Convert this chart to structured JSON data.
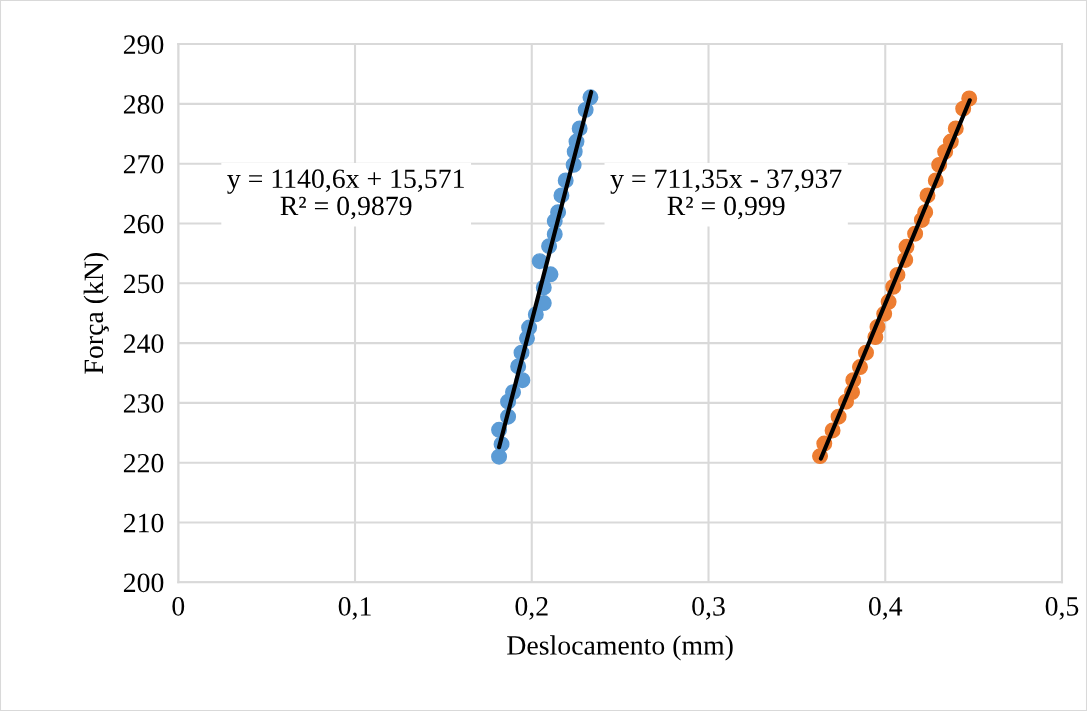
{
  "chart_data": {
    "type": "scatter",
    "xlabel": "Deslocamento (mm)",
    "ylabel": "Força (kN)",
    "xlim": [
      0,
      0.5
    ],
    "xticks": [
      {
        "value": 0,
        "label": "0"
      },
      {
        "value": 0.1,
        "label": "0,1"
      },
      {
        "value": 0.2,
        "label": "0,2"
      },
      {
        "value": 0.3,
        "label": "0,3"
      },
      {
        "value": 0.4,
        "label": "0,4"
      },
      {
        "value": 0.5,
        "label": "0,5"
      }
    ],
    "ylim": [
      200,
      290
    ],
    "yticks": [
      200,
      210,
      220,
      230,
      240,
      250,
      260,
      270,
      280,
      290
    ],
    "grid": true,
    "marker": "circle",
    "annotations": [
      "y = 1140,6x + 15,571\nR² = 0,9879",
      "y = 711,35x - 37,937\nR² = 0,999"
    ],
    "series": [
      {
        "color": "#5b9bd5",
        "x": [
          0.1815,
          0.1829,
          0.1815,
          0.1866,
          0.1866,
          0.1894,
          0.1947,
          0.1923,
          0.1942,
          0.1973,
          0.1985,
          0.2023,
          0.2068,
          0.2068,
          0.2106,
          0.2045,
          0.2098,
          0.213,
          0.213,
          0.2149,
          0.2168,
          0.2192,
          0.2237,
          0.2243,
          0.2253,
          0.2271,
          0.2305,
          0.2332
        ],
        "values": [
          221.0,
          223.1,
          225.5,
          227.7,
          230.2,
          231.8,
          233.8,
          236.1,
          238.4,
          240.8,
          242.6,
          244.8,
          246.7,
          249.3,
          251.5,
          253.7,
          256.2,
          258.2,
          260.4,
          261.9,
          264.7,
          267.2,
          269.8,
          272.0,
          273.7,
          275.9,
          279.0,
          281.1
        ]
      },
      {
        "color": "#ed7d31",
        "x": [
          0.3631,
          0.3655,
          0.3702,
          0.3736,
          0.3778,
          0.3812,
          0.3819,
          0.3857,
          0.3891,
          0.3944,
          0.3956,
          0.3994,
          0.4019,
          0.4045,
          0.4069,
          0.4113,
          0.412,
          0.4169,
          0.4207,
          0.4226,
          0.4239,
          0.4286,
          0.4305,
          0.4339,
          0.4371,
          0.4399,
          0.4441,
          0.4475
        ],
        "values": [
          221.1,
          223.2,
          225.4,
          227.7,
          230.2,
          231.8,
          233.8,
          236.0,
          238.4,
          241.0,
          242.7,
          244.9,
          246.9,
          249.4,
          251.4,
          253.9,
          256.1,
          258.3,
          260.6,
          261.9,
          264.7,
          267.2,
          269.8,
          272.0,
          273.7,
          275.9,
          279.2,
          280.9
        ]
      },
      {
        "type": "line",
        "color": "#000000",
        "marker": "none",
        "x": [
          0.1815,
          0.2336
        ],
        "values": [
          222.6,
          282.0
        ]
      },
      {
        "type": "line",
        "color": "#000000",
        "marker": "none",
        "x": [
          0.3636,
          0.4478
        ],
        "values": [
          220.7,
          280.6
        ]
      }
    ]
  }
}
